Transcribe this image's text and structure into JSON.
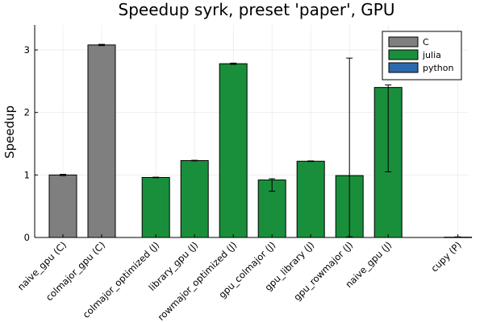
{
  "chart_data": {
    "type": "bar",
    "title": "Speedup syrk, preset 'paper', GPU",
    "xlabel": "",
    "ylabel": "Speedup",
    "ylim": [
      0,
      3.4
    ],
    "yticks": [
      0,
      1,
      2,
      3
    ],
    "grid": true,
    "legend_position": "top-right",
    "categories": [
      "naive_gpu (C)",
      "colmajor_gpu (C)",
      "colmajor_optimized (J)",
      "library_gpu (J)",
      "rowmajor_optimized (J)",
      "gpu_colmajor (J)",
      "gpu_library (J)",
      "gpu_rowmajor (J)",
      "naive_gpu (J)",
      "cupy (P)"
    ],
    "series": [
      {
        "name": "C",
        "color": "#7f7f7f",
        "points": [
          {
            "category": "naive_gpu (C)",
            "value": 1.0,
            "err_low": 0.99,
            "err_high": 1.01
          },
          {
            "category": "colmajor_gpu (C)",
            "value": 3.08,
            "err_low": 3.07,
            "err_high": 3.09
          }
        ]
      },
      {
        "name": "julia",
        "color": "#1a8f3b",
        "points": [
          {
            "category": "colmajor_optimized (J)",
            "value": 0.96,
            "err_low": 0.955,
            "err_high": 0.965
          },
          {
            "category": "library_gpu (J)",
            "value": 1.23,
            "err_low": 1.225,
            "err_high": 1.235
          },
          {
            "category": "rowmajor_optimized (J)",
            "value": 2.78,
            "err_low": 2.77,
            "err_high": 2.79
          },
          {
            "category": "gpu_colmajor (J)",
            "value": 0.92,
            "err_low": 0.74,
            "err_high": 0.94
          },
          {
            "category": "gpu_library (J)",
            "value": 1.22,
            "err_low": 1.215,
            "err_high": 1.225
          },
          {
            "category": "gpu_rowmajor (J)",
            "value": 0.99,
            "err_low": 0.01,
            "err_high": 2.87
          },
          {
            "category": "naive_gpu (J)",
            "value": 2.4,
            "err_low": 1.05,
            "err_high": 2.44
          }
        ]
      },
      {
        "name": "python",
        "color": "#2c6aad",
        "points": [
          {
            "category": "cupy (P)",
            "value": 0.005,
            "err_low": 0.0,
            "err_high": 0.01
          }
        ]
      }
    ]
  }
}
